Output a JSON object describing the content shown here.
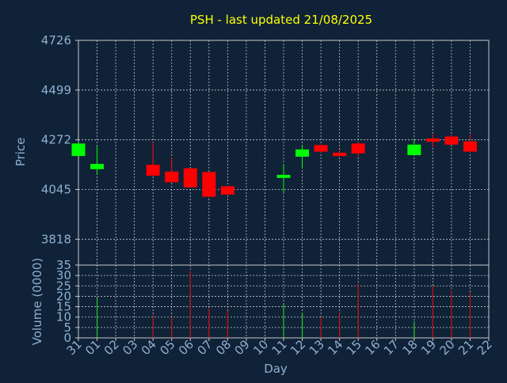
{
  "chart_data": {
    "type": "candlestick",
    "title": "PSH - last updated 21/08/2025",
    "xlabel": "Day",
    "colors": {
      "background": "#0f2238",
      "text": "#8fb0d0",
      "title": "#ffff00",
      "grid": "#c8c8c8",
      "up": "#00ff00",
      "down": "#ff0000",
      "down_volume": "#cc1010",
      "up_volume": "#22cc22"
    },
    "x_tick_labels": [
      "31",
      "01",
      "02",
      "03",
      "04",
      "05",
      "06",
      "07",
      "08",
      "09",
      "10",
      "11",
      "12",
      "13",
      "14",
      "15",
      "16",
      "17",
      "18",
      "19",
      "20",
      "21",
      "22"
    ],
    "price_panel": {
      "ylabel": "Price",
      "ylim": [
        3700,
        4726
      ],
      "ticks": [
        4726,
        4499,
        4272,
        4045,
        3818
      ],
      "candles": [
        {
          "day": "31",
          "open": 4198,
          "close": 4255,
          "high": 4262,
          "low": 4198,
          "direction": "up"
        },
        {
          "day": "01",
          "open": 4138,
          "close": 4162,
          "high": 4245,
          "low": 4115,
          "direction": "up"
        },
        {
          "day": "04",
          "open": 4158,
          "close": 4108,
          "high": 4262,
          "low": 4108,
          "direction": "down"
        },
        {
          "day": "05",
          "open": 4127,
          "close": 4078,
          "high": 4192,
          "low": 4078,
          "direction": "down"
        },
        {
          "day": "06",
          "open": 4142,
          "close": 4055,
          "high": 4142,
          "low": 4055,
          "direction": "down"
        },
        {
          "day": "07",
          "open": 4125,
          "close": 4012,
          "high": 4125,
          "low": 4012,
          "direction": "down"
        },
        {
          "day": "08",
          "open": 4060,
          "close": 4022,
          "high": 4060,
          "low": 4022,
          "direction": "down"
        },
        {
          "day": "11",
          "open": 4098,
          "close": 4112,
          "high": 4160,
          "low": 4030,
          "direction": "up"
        },
        {
          "day": "12",
          "open": 4195,
          "close": 4228,
          "high": 4245,
          "low": 4145,
          "direction": "up"
        },
        {
          "day": "13",
          "open": 4248,
          "close": 4218,
          "high": 4250,
          "low": 4215,
          "direction": "down"
        },
        {
          "day": "14",
          "open": 4213,
          "close": 4198,
          "high": 4228,
          "low": 4195,
          "direction": "down"
        },
        {
          "day": "15",
          "open": 4255,
          "close": 4210,
          "high": 4262,
          "low": 4195,
          "direction": "down"
        },
        {
          "day": "18",
          "open": 4202,
          "close": 4250,
          "high": 4272,
          "low": 4202,
          "direction": "up"
        },
        {
          "day": "19",
          "open": 4278,
          "close": 4263,
          "high": 4298,
          "low": 4238,
          "direction": "down"
        },
        {
          "day": "20",
          "open": 4287,
          "close": 4250,
          "high": 4295,
          "low": 4250,
          "direction": "down"
        },
        {
          "day": "21",
          "open": 4265,
          "close": 4218,
          "high": 4298,
          "low": 4212,
          "direction": "down"
        }
      ]
    },
    "volume_panel": {
      "ylabel": "Volume (0000)",
      "ylim": [
        0,
        35
      ],
      "ticks": [
        35,
        30,
        25,
        20,
        15,
        10,
        5,
        0
      ],
      "bars": [
        {
          "day": "01",
          "value": 19,
          "direction": "up"
        },
        {
          "day": "04",
          "value": 11,
          "direction": "down"
        },
        {
          "day": "05",
          "value": 10,
          "direction": "down"
        },
        {
          "day": "06",
          "value": 32,
          "direction": "down"
        },
        {
          "day": "07",
          "value": 14,
          "direction": "down"
        },
        {
          "day": "08",
          "value": 13,
          "direction": "down"
        },
        {
          "day": "11",
          "value": 16,
          "direction": "up"
        },
        {
          "day": "12",
          "value": 12,
          "direction": "up"
        },
        {
          "day": "13",
          "value": 10,
          "direction": "down"
        },
        {
          "day": "14",
          "value": 12,
          "direction": "down"
        },
        {
          "day": "15",
          "value": 26,
          "direction": "down"
        },
        {
          "day": "18",
          "value": 8,
          "direction": "up"
        },
        {
          "day": "19",
          "value": 25,
          "direction": "down"
        },
        {
          "day": "20",
          "value": 23,
          "direction": "down"
        },
        {
          "day": "21",
          "value": 22,
          "direction": "down"
        }
      ]
    },
    "grid": true,
    "legend": "none"
  }
}
